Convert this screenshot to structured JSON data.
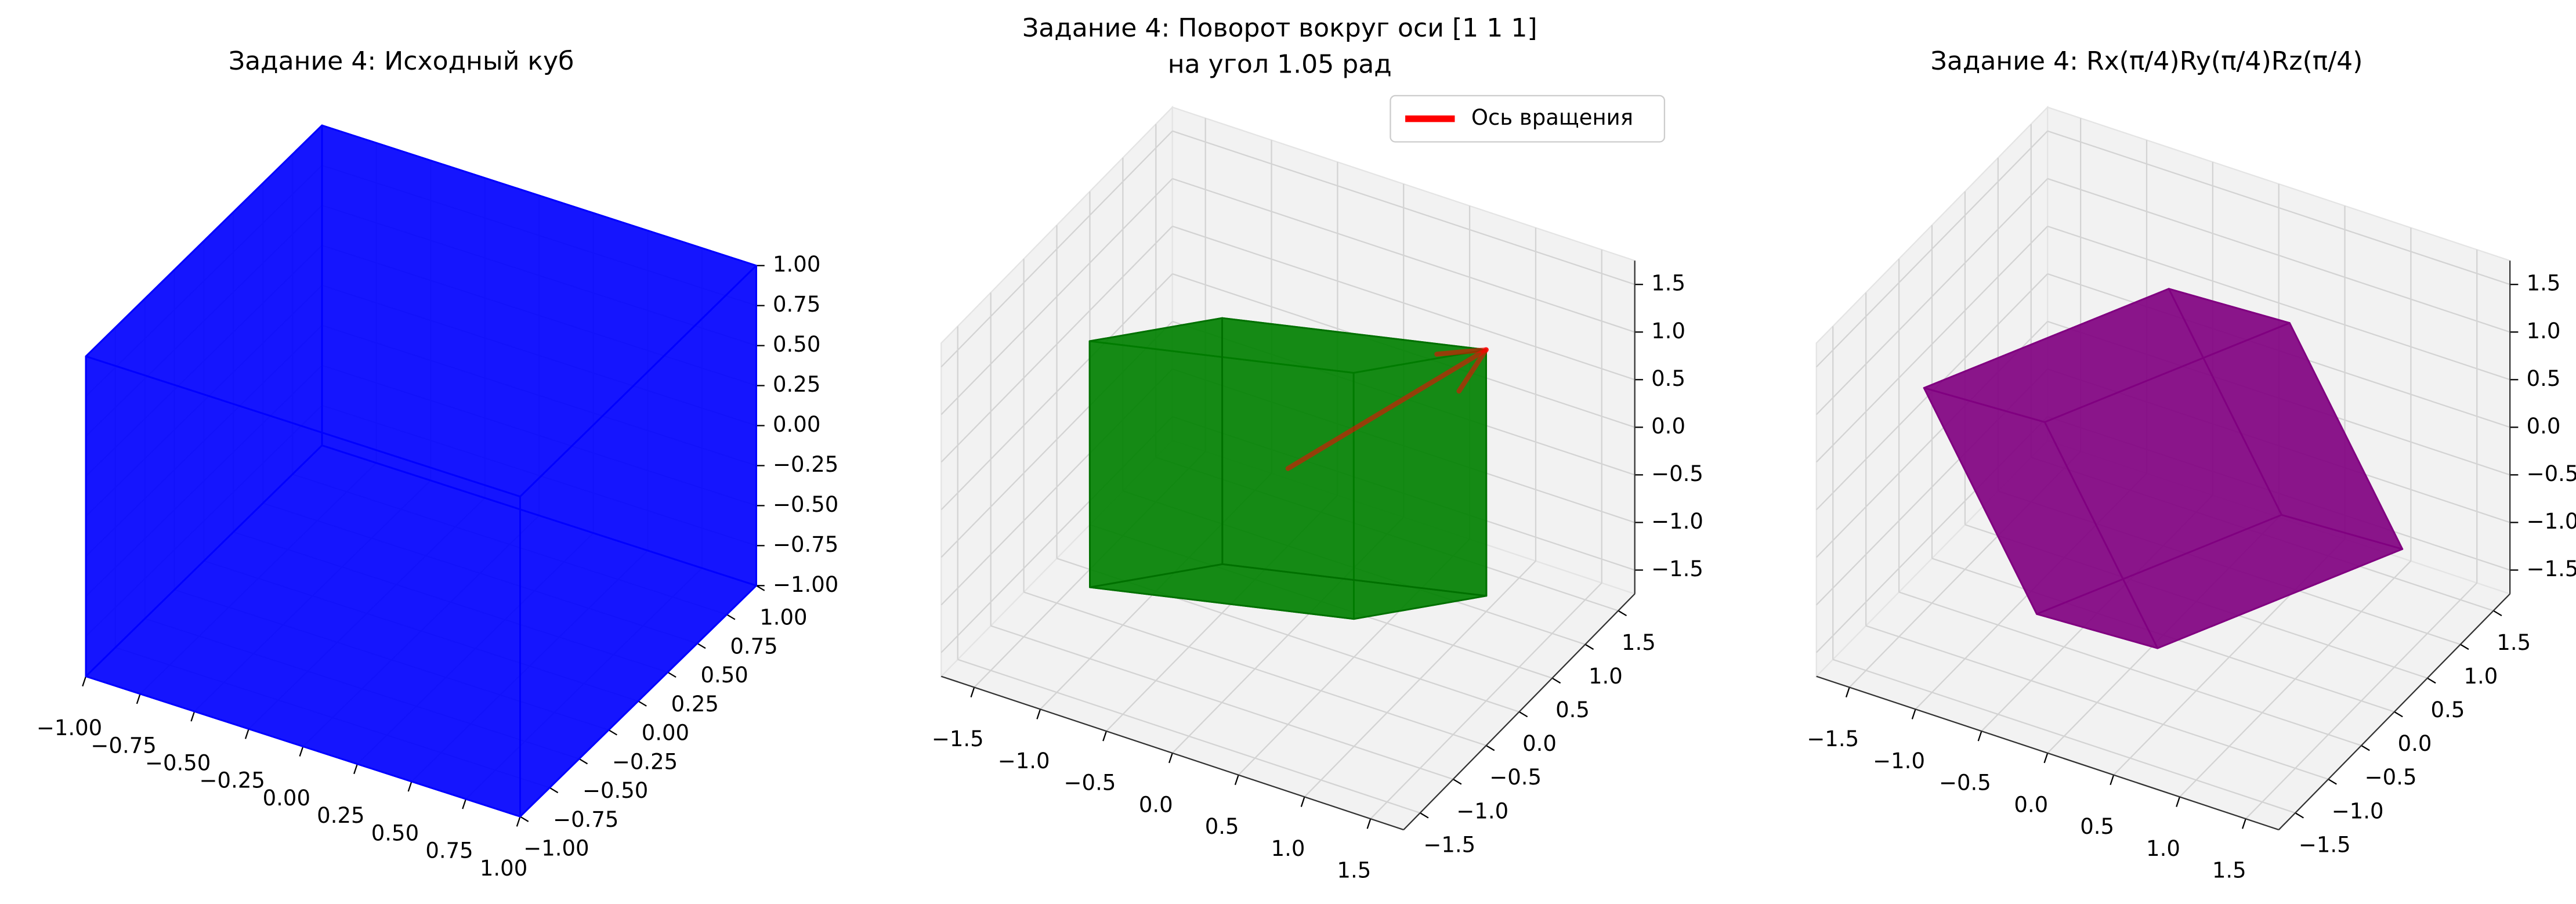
{
  "chart_data": [
    {
      "type": "3d-polyhedron",
      "title": [
        "Задание 4: Исходный куб"
      ],
      "xlim": [
        -1,
        1
      ],
      "ylim": [
        -1,
        1
      ],
      "zlim": [
        -1,
        1
      ],
      "xticks": [
        {
          "value": -1,
          "label": "−1.00"
        },
        {
          "value": -0.75,
          "label": "−0.75"
        },
        {
          "value": -0.5,
          "label": "−0.50"
        },
        {
          "value": -0.25,
          "label": "−0.25"
        },
        {
          "value": 0,
          "label": "0.00"
        },
        0.25,
        {
          "value": 0.5,
          "label": "0.50"
        },
        0.75,
        {
          "value": 1,
          "label": "1.00"
        }
      ],
      "yticks": [
        {
          "value": -1,
          "label": "−1.00"
        },
        {
          "value": -0.75,
          "label": "−0.75"
        },
        {
          "value": -0.5,
          "label": "−0.50"
        },
        {
          "value": -0.25,
          "label": "−0.25"
        },
        {
          "value": 0,
          "label": "0.00"
        },
        0.25,
        {
          "value": 0.5,
          "label": "0.50"
        },
        0.75,
        {
          "value": 1,
          "label": "1.00"
        }
      ],
      "zticks": [
        {
          "value": -1,
          "label": "−1.00"
        },
        {
          "value": -0.75,
          "label": "−0.75"
        },
        {
          "value": -0.5,
          "label": "−0.50"
        },
        {
          "value": -0.25,
          "label": "−0.25"
        },
        {
          "value": 0,
          "label": "0.00"
        },
        0.25,
        {
          "value": 0.5,
          "label": "0.50"
        },
        0.75,
        {
          "value": 1,
          "label": "1.00"
        }
      ],
      "vertices": [
        [
          -1,
          -1,
          -1
        ],
        [
          1,
          -1,
          -1
        ],
        [
          -1,
          1,
          -1
        ],
        [
          1,
          1,
          -1
        ],
        [
          -1,
          -1,
          1
        ],
        [
          1,
          -1,
          1
        ],
        [
          -1,
          1,
          1
        ],
        [
          1,
          1,
          1
        ]
      ],
      "faces": [
        [
          0,
          1,
          3,
          2
        ],
        [
          4,
          5,
          7,
          6
        ],
        [
          0,
          1,
          5,
          4
        ],
        [
          2,
          3,
          7,
          6
        ],
        [
          0,
          2,
          6,
          4
        ],
        [
          1,
          3,
          7,
          5
        ]
      ],
      "color": "#0000ff",
      "edge_color": "#0000ff"
    },
    {
      "type": "3d-polyhedron",
      "title": [
        "Задание 4: Поворот вокруг оси [1 1 1]",
        "на угол 1.05 рад"
      ],
      "xlim": [
        -1.75,
        1.75
      ],
      "ylim": [
        -1.75,
        1.75
      ],
      "zlim": [
        -1.75,
        1.75
      ],
      "xticks": [
        {
          "value": -1.5,
          "label": "−1.5"
        },
        {
          "value": -1,
          "label": "−1.0"
        },
        {
          "value": -0.5,
          "label": "−0.5"
        },
        {
          "value": 0,
          "label": "0.0"
        },
        0.5,
        {
          "value": 1,
          "label": "1.0"
        },
        1.5
      ],
      "yticks": [
        {
          "value": -1.5,
          "label": "−1.5"
        },
        {
          "value": -1,
          "label": "−1.0"
        },
        {
          "value": -0.5,
          "label": "−0.5"
        },
        {
          "value": 0,
          "label": "0.0"
        },
        0.5,
        {
          "value": 1,
          "label": "1.0"
        },
        1.5
      ],
      "zticks": [
        {
          "value": -1.5,
          "label": "−1.5"
        },
        {
          "value": -1,
          "label": "−1.0"
        },
        {
          "value": -0.5,
          "label": "−0.5"
        },
        {
          "value": 0,
          "label": "0.0"
        },
        0.5,
        {
          "value": 1,
          "label": "1.0"
        },
        1.5
      ],
      "vertices": [
        [
          -1,
          -1,
          -1
        ],
        [
          0.3301,
          0.3365,
          -1.6667
        ],
        [
          -1.6667,
          0.3301,
          0.3365
        ],
        [
          -0.3365,
          1.6667,
          -0.3301
        ],
        [
          0.3365,
          -1.6667,
          0.3301
        ],
        [
          1.6667,
          -0.3301,
          -0.3365
        ],
        [
          -0.3301,
          -0.3365,
          1.6667
        ],
        [
          1,
          1,
          1
        ]
      ],
      "faces": [
        [
          0,
          1,
          3,
          2
        ],
        [
          4,
          5,
          7,
          6
        ],
        [
          0,
          1,
          5,
          4
        ],
        [
          2,
          3,
          7,
          6
        ],
        [
          0,
          2,
          6,
          4
        ],
        [
          1,
          3,
          7,
          5
        ]
      ],
      "color": "#008000",
      "edge_color": "#007000",
      "arrow": {
        "start": [
          0,
          0,
          0
        ],
        "end": [
          1,
          1,
          1
        ],
        "color": "#ff0000"
      },
      "legend": {
        "label": "Ось вращения",
        "loc": "upper right"
      }
    },
    {
      "type": "3d-polyhedron",
      "title": [
        "Задание 4: Rx(π/4)Ry(π/4)Rz(π/4)"
      ],
      "xlim": [
        -1.75,
        1.75
      ],
      "ylim": [
        -1.75,
        1.75
      ],
      "zlim": [
        -1.75,
        1.75
      ],
      "xticks": [
        {
          "value": -1.5,
          "label": "−1.5"
        },
        {
          "value": -1,
          "label": "−1.0"
        },
        {
          "value": -0.5,
          "label": "−0.5"
        },
        {
          "value": 0,
          "label": "0.0"
        },
        0.5,
        {
          "value": 1,
          "label": "1.0"
        },
        1.5
      ],
      "yticks": [
        {
          "value": -1.5,
          "label": "−1.5"
        },
        {
          "value": -1,
          "label": "−1.0"
        },
        {
          "value": -0.5,
          "label": "−0.5"
        },
        {
          "value": 0,
          "label": "0.0"
        },
        0.5,
        {
          "value": 1,
          "label": "1.0"
        },
        1.5
      ],
      "zticks": [
        {
          "value": -1.5,
          "label": "−1.5"
        },
        {
          "value": -1,
          "label": "−1.0"
        },
        {
          "value": -0.5,
          "label": "−0.5"
        },
        {
          "value": 0,
          "label": "0.0"
        },
        0.5,
        {
          "value": 1,
          "label": "1.0"
        },
        1.5
      ],
      "vertices": [
        [
          -0.7071,
          -0.5,
          -1.5
        ],
        [
          0.2929,
          1.2071,
          -1.2071
        ],
        [
          -1.7071,
          -0.2071,
          0.2071
        ],
        [
          -0.7071,
          1.5,
          0.5
        ],
        [
          0.7071,
          -1.5,
          -0.5
        ],
        [
          1.7071,
          0.2071,
          -0.2071
        ],
        [
          -0.2929,
          -1.2071,
          1.2071
        ],
        [
          0.7071,
          0.5,
          1.5
        ]
      ],
      "faces": [
        [
          0,
          1,
          3,
          2
        ],
        [
          4,
          5,
          7,
          6
        ],
        [
          0,
          1,
          5,
          4
        ],
        [
          2,
          3,
          7,
          6
        ],
        [
          0,
          2,
          6,
          4
        ],
        [
          1,
          3,
          7,
          5
        ]
      ],
      "color": "#800080",
      "edge_color": "#800080"
    }
  ]
}
